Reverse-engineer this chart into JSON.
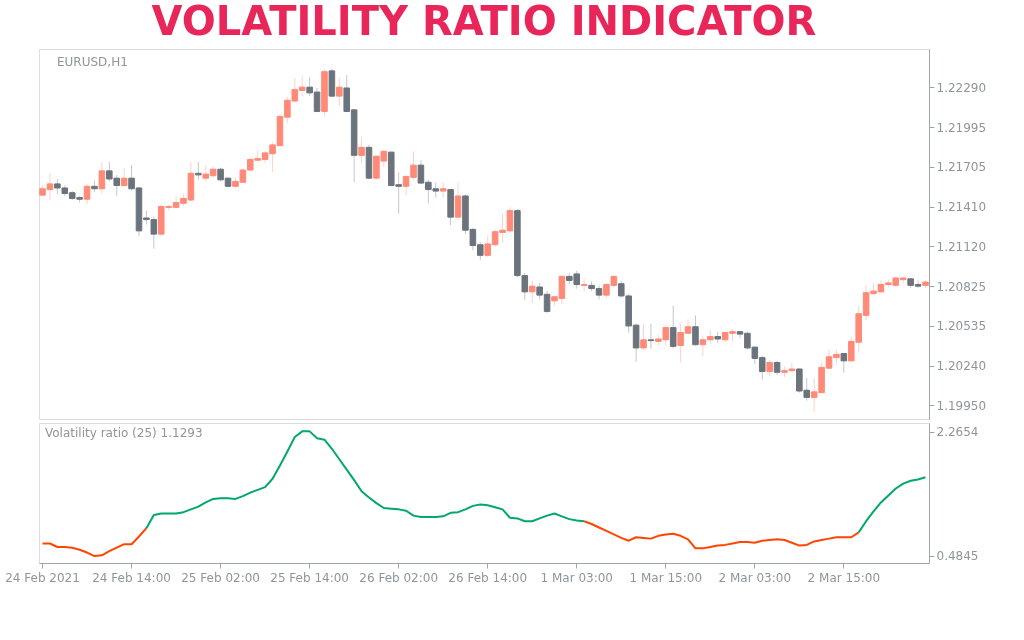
{
  "chart_data": [
    {
      "type": "candlestick",
      "title": "VOLATILITY RATIO INDICATOR",
      "annotations": [
        "EURUSD,H1"
      ],
      "categories": [
        null,
        null,
        null,
        null,
        null,
        null,
        null,
        null,
        null,
        null,
        null,
        null,
        null,
        null,
        null,
        null,
        null,
        null,
        null,
        null,
        null,
        null,
        null,
        null,
        null,
        null,
        null,
        null,
        null,
        null,
        null,
        null,
        null,
        null,
        null,
        null,
        null,
        null,
        null,
        null,
        null,
        null,
        null,
        null,
        null,
        null,
        null,
        null,
        null,
        null,
        null,
        null,
        null,
        null,
        null,
        null,
        null,
        null,
        null,
        null,
        null,
        null,
        null,
        null,
        null,
        null,
        null,
        null,
        null,
        null,
        null,
        null,
        null,
        null,
        null,
        null,
        null,
        null,
        null,
        null,
        null,
        null,
        null,
        null,
        null,
        null,
        null,
        null,
        null,
        null,
        null,
        null,
        null,
        null,
        null,
        null,
        null,
        null,
        null,
        null,
        null,
        null,
        null,
        null,
        null,
        null,
        null,
        null,
        null,
        null,
        null,
        null,
        null,
        null,
        null,
        null,
        null,
        null,
        null,
        null
      ],
      "ohlc": [
        [
          1.21495,
          1.21566,
          1.21489,
          1.21542
        ],
        [
          1.21536,
          1.21656,
          1.21459,
          1.21578
        ],
        [
          1.21578,
          1.21614,
          1.21501,
          1.21548
        ],
        [
          1.21548,
          1.21566,
          1.21489,
          1.21507
        ],
        [
          1.21513,
          1.21525,
          1.21459,
          1.21471
        ],
        [
          1.21477,
          1.21489,
          1.21441,
          1.21465
        ],
        [
          1.21465,
          1.21578,
          1.21429,
          1.2156
        ],
        [
          1.2156,
          1.21602,
          1.21519,
          1.21542
        ],
        [
          1.21542,
          1.2174,
          1.21507,
          1.21674
        ],
        [
          1.21674,
          1.2174,
          1.21596,
          1.21614
        ],
        [
          1.2162,
          1.21644,
          1.21489,
          1.21566
        ],
        [
          1.21566,
          1.21692,
          1.21554,
          1.2162
        ],
        [
          1.2162,
          1.21716,
          1.21531,
          1.21542
        ],
        [
          1.21548,
          1.21554,
          1.21196,
          1.21232
        ],
        [
          1.21327,
          1.21381,
          1.21279,
          1.21315
        ],
        [
          1.21315,
          1.21339,
          1.211,
          1.21208
        ],
        [
          1.21208,
          1.21429,
          1.21196,
          1.21411
        ],
        [
          1.21405,
          1.21423,
          1.21387,
          1.21411
        ],
        [
          1.21405,
          1.21489,
          1.21399,
          1.21441
        ],
        [
          1.21435,
          1.21501,
          1.21417,
          1.21471
        ],
        [
          1.21459,
          1.2174,
          1.21447,
          1.21656
        ],
        [
          1.21656,
          1.2174,
          1.21608,
          1.21644
        ],
        [
          1.2162,
          1.21716,
          1.21596,
          1.2165
        ],
        [
          1.21638,
          1.21704,
          1.21626,
          1.21686
        ],
        [
          1.21686,
          1.21698,
          1.21596,
          1.21608
        ],
        [
          1.2162,
          1.21626,
          1.21554,
          1.2156
        ],
        [
          1.2156,
          1.21626,
          1.21554,
          1.21596
        ],
        [
          1.2159,
          1.21692,
          1.21584,
          1.2168
        ],
        [
          1.2168,
          1.2177,
          1.21668,
          1.21758
        ],
        [
          1.21752,
          1.21824,
          1.21752,
          1.21764
        ],
        [
          1.21758,
          1.21818,
          1.21728,
          1.21806
        ],
        [
          1.218,
          1.21883,
          1.21668,
          1.21865
        ],
        [
          1.21859,
          1.22087,
          1.21859,
          1.22075
        ],
        [
          1.22069,
          1.22218,
          1.22027,
          1.22194
        ],
        [
          1.22188,
          1.22356,
          1.22176,
          1.22272
        ],
        [
          1.22266,
          1.22374,
          1.22224,
          1.2229
        ],
        [
          1.2229,
          1.22362,
          1.22224,
          1.22248
        ],
        [
          1.22254,
          1.22284,
          1.22105,
          1.22111
        ],
        [
          1.22111,
          1.22422,
          1.22075,
          1.22404
        ],
        [
          1.2241,
          1.22428,
          1.22218,
          1.22224
        ],
        [
          1.22224,
          1.22356,
          1.22152,
          1.2229
        ],
        [
          1.22284,
          1.2238,
          1.22105,
          1.22111
        ],
        [
          1.22123,
          1.22129,
          1.2159,
          1.21788
        ],
        [
          1.21788,
          1.21925,
          1.21734,
          1.21847
        ],
        [
          1.21847,
          1.21865,
          1.21614,
          1.2162
        ],
        [
          1.2162,
          1.21782,
          1.21614,
          1.21782
        ],
        [
          1.21746,
          1.21824,
          1.21704,
          1.21818
        ],
        [
          1.21812,
          1.21812,
          1.2156,
          1.21566
        ],
        [
          1.21572,
          1.21662,
          1.21357,
          1.2156
        ],
        [
          1.2156,
          1.21644,
          1.21495,
          1.21632
        ],
        [
          1.21626,
          1.21818,
          1.21608,
          1.21716
        ],
        [
          1.21716,
          1.21752,
          1.21578,
          1.21584
        ],
        [
          1.2159,
          1.21608,
          1.21435,
          1.21536
        ],
        [
          1.21542,
          1.2159,
          1.21477,
          1.21525
        ],
        [
          1.21525,
          1.2159,
          1.21477,
          1.21542
        ],
        [
          1.21536,
          1.21542,
          1.21273,
          1.21333
        ],
        [
          1.21333,
          1.2159,
          1.21315,
          1.21489
        ],
        [
          1.21489,
          1.21501,
          1.21208,
          1.21237
        ],
        [
          1.21243,
          1.21255,
          1.21088,
          1.21124
        ],
        [
          1.2113,
          1.21148,
          1.21016,
          1.21052
        ],
        [
          1.21052,
          1.21196,
          1.2104,
          1.21136
        ],
        [
          1.2113,
          1.21243,
          1.21118,
          1.21226
        ],
        [
          1.2122,
          1.21357,
          1.21148,
          1.21237
        ],
        [
          1.21232,
          1.21405,
          1.2122,
          1.21381
        ],
        [
          1.21381,
          1.21393,
          1.20891,
          1.20903
        ],
        [
          1.20903,
          1.20921,
          1.20723,
          1.20783
        ],
        [
          1.20783,
          1.20867,
          1.20699,
          1.20825
        ],
        [
          1.20819,
          1.20849,
          1.20729,
          1.20759
        ],
        [
          1.20765,
          1.20789,
          1.20628,
          1.20639
        ],
        [
          1.20717,
          1.20759,
          1.20681,
          1.20747
        ],
        [
          1.20735,
          1.20903,
          1.20693,
          1.20897
        ],
        [
          1.20897,
          1.20921,
          1.20837,
          1.20867
        ],
        [
          1.20915,
          1.20938,
          1.20807,
          1.20837
        ],
        [
          1.20831,
          1.20879,
          1.20789,
          1.20837
        ],
        [
          1.20831,
          1.20861,
          1.20789,
          1.20807
        ],
        [
          1.20807,
          1.20831,
          1.20729,
          1.20759
        ],
        [
          1.20759,
          1.20849,
          1.20741,
          1.20837
        ],
        [
          1.20831,
          1.20909,
          1.20813,
          1.20897
        ],
        [
          1.20843,
          1.20861,
          1.20741,
          1.20753
        ],
        [
          1.20753,
          1.20771,
          1.20484,
          1.20532
        ],
        [
          1.20538,
          1.2055,
          1.20269,
          1.2037
        ],
        [
          1.2037,
          1.20544,
          1.20358,
          1.2043
        ],
        [
          1.2043,
          1.2055,
          1.20364,
          1.20424
        ],
        [
          1.20418,
          1.20466,
          1.20388,
          1.20436
        ],
        [
          1.2043,
          1.20532,
          1.20388,
          1.2052
        ],
        [
          1.2052,
          1.20681,
          1.2037,
          1.20382
        ],
        [
          1.20388,
          1.2055,
          1.20263,
          1.20484
        ],
        [
          1.20478,
          1.2058,
          1.20478,
          1.20526
        ],
        [
          1.20526,
          1.2061,
          1.20388,
          1.20394
        ],
        [
          1.20394,
          1.2046,
          1.20311,
          1.2043
        ],
        [
          1.2043,
          1.20502,
          1.204,
          1.20454
        ],
        [
          1.20454,
          1.2049,
          1.20406,
          1.20436
        ],
        [
          1.2043,
          1.2049,
          1.20412,
          1.20484
        ],
        [
          1.20478,
          1.20508,
          1.20418,
          1.2049
        ],
        [
          1.2049,
          1.20496,
          1.20442,
          1.20472
        ],
        [
          1.20478,
          1.2049,
          1.20358,
          1.2037
        ],
        [
          1.20376,
          1.20382,
          1.20251,
          1.20293
        ],
        [
          1.20299,
          1.20311,
          1.20137,
          1.20197
        ],
        [
          1.20197,
          1.20281,
          1.20161,
          1.20263
        ],
        [
          1.20263,
          1.20275,
          1.20173,
          1.20191
        ],
        [
          1.20191,
          1.20233,
          1.20155,
          1.20203
        ],
        [
          1.20203,
          1.20263,
          1.20191,
          1.20215
        ],
        [
          1.20215,
          1.20221,
          1.20041,
          1.20053
        ],
        [
          1.20059,
          1.20149,
          1.19982,
          1.20006
        ],
        [
          1.20006,
          1.20149,
          1.19898,
          1.20047
        ],
        [
          1.20041,
          1.20263,
          1.20036,
          1.20227
        ],
        [
          1.20221,
          1.20358,
          1.20215,
          1.20305
        ],
        [
          1.20299,
          1.20358,
          1.20257,
          1.20323
        ],
        [
          1.20329,
          1.20329,
          1.20185,
          1.20275
        ],
        [
          1.20275,
          1.20454,
          1.20269,
          1.20418
        ],
        [
          1.20412,
          1.20681,
          1.20335,
          1.20622
        ],
        [
          1.2061,
          1.20831,
          1.20574,
          1.20777
        ],
        [
          1.20771,
          1.20849,
          1.20759,
          1.20789
        ],
        [
          1.20783,
          1.20867,
          1.20777,
          1.20837
        ],
        [
          1.20837,
          1.20873,
          1.20819,
          1.20849
        ],
        [
          1.20831,
          1.20897,
          1.20819,
          1.20885
        ],
        [
          1.20873,
          1.20891,
          1.20843,
          1.20885
        ],
        [
          1.20879,
          1.20885,
          1.20813,
          1.20831
        ],
        [
          1.20837,
          1.20867,
          1.20813,
          1.20825
        ],
        [
          1.20831,
          1.20867,
          1.20813,
          1.20855
        ]
      ],
      "colors": [
        "#ff8a78",
        "#ff8a78",
        "#6b737c",
        "#6b737c",
        "#6b737c",
        "#6b737c",
        "#ff8a78",
        "#6b737c",
        "#ff8a78",
        "#6b737c",
        "#6b737c",
        "#ff8a78",
        "#6b737c",
        "#6b737c",
        "#6b737c",
        "#6b737c",
        "#ff8a78",
        "#ff8a78",
        "#ff8a78",
        "#ff8a78",
        "#ff8a78",
        "#6b737c",
        "#ff8a78",
        "#ff8a78",
        "#6b737c",
        "#6b737c",
        "#ff8a78",
        "#ff8a78",
        "#ff8a78",
        "#ff8a78",
        "#ff8a78",
        "#ff8a78",
        "#ff8a78",
        "#ff8a78",
        "#ff8a78",
        "#ff8a78",
        "#6b737c",
        "#6b737c",
        "#ff8a78",
        "#6b737c",
        "#ff8a78",
        "#6b737c",
        "#6b737c",
        "#ff8a78",
        "#6b737c",
        "#ff8a78",
        "#ff8a78",
        "#6b737c",
        "#6b737c",
        "#ff8a78",
        "#ff8a78",
        "#6b737c",
        "#6b737c",
        "#6b737c",
        "#ff8a78",
        "#6b737c",
        "#ff8a78",
        "#6b737c",
        "#6b737c",
        "#6b737c",
        "#ff8a78",
        "#ff8a78",
        "#ff8a78",
        "#ff8a78",
        "#6b737c",
        "#6b737c",
        "#ff8a78",
        "#6b737c",
        "#6b737c",
        "#ff8a78",
        "#ff8a78",
        "#6b737c",
        "#6b737c",
        "#ff8a78",
        "#6b737c",
        "#6b737c",
        "#ff8a78",
        "#ff8a78",
        "#6b737c",
        "#6b737c",
        "#6b737c",
        "#ff8a78",
        "#6b737c",
        "#ff8a78",
        "#ff8a78",
        "#6b737c",
        "#ff8a78",
        "#ff8a78",
        "#6b737c",
        "#ff8a78",
        "#ff8a78",
        "#6b737c",
        "#ff8a78",
        "#ff8a78",
        "#6b737c",
        "#6b737c",
        "#6b737c",
        "#6b737c",
        "#ff8a78",
        "#6b737c",
        "#ff8a78",
        "#ff8a78",
        "#6b737c",
        "#6b737c",
        "#ff8a78",
        "#ff8a78",
        "#ff8a78",
        "#ff8a78",
        "#6b737c",
        "#ff8a78",
        "#ff8a78",
        "#ff8a78",
        "#ff8a78",
        "#ff8a78",
        "#ff8a78",
        "#ff8a78",
        "#ff8a78",
        "#6b737c",
        "#6b737c",
        "#ff8a78"
      ],
      "ylim": [
        1.19847,
        1.22571
      ],
      "yticks": [
        {
          "value": 1.2229,
          "label": "1.22290"
        },
        {
          "value": 1.21995,
          "label": "1.21995"
        },
        {
          "value": 1.21705,
          "label": "1.21705"
        },
        {
          "value": 1.2141,
          "label": "1.21410"
        },
        {
          "value": 1.2112,
          "label": "1.21120"
        },
        {
          "value": 1.20825,
          "label": "1.20825"
        },
        {
          "value": 1.20535,
          "label": "1.20535"
        },
        {
          "value": 1.2024,
          "label": "1.20240"
        },
        {
          "value": 1.1995,
          "label": "1.19950"
        }
      ],
      "tick_labels": "y",
      "grid": false
    },
    {
      "type": "line",
      "title": "Volatility ratio (25) 1.1293",
      "marker": "none",
      "line_style": "solid",
      "grid": false,
      "categories": [
        "24 Feb 2021",
        null,
        null,
        null,
        null,
        null,
        null,
        null,
        null,
        null,
        null,
        null,
        "24 Feb 14:00",
        null,
        null,
        null,
        null,
        null,
        null,
        null,
        null,
        null,
        null,
        null,
        "25 Feb 02:00",
        null,
        null,
        null,
        null,
        null,
        null,
        null,
        null,
        null,
        null,
        null,
        "25 Feb 14:00",
        null,
        null,
        null,
        null,
        null,
        null,
        null,
        null,
        null,
        null,
        null,
        "26 Feb 02:00",
        null,
        null,
        null,
        null,
        null,
        null,
        null,
        null,
        null,
        null,
        null,
        "26 Feb 14:00",
        null,
        null,
        null,
        null,
        null,
        null,
        null,
        null,
        null,
        null,
        null,
        "1 Mar 03:00",
        null,
        null,
        null,
        null,
        null,
        null,
        null,
        null,
        null,
        null,
        null,
        "1 Mar 15:00",
        null,
        null,
        null,
        null,
        null,
        null,
        null,
        null,
        null,
        null,
        null,
        "2 Mar 03:00",
        null,
        null,
        null,
        null,
        null,
        null,
        null,
        null,
        null,
        null,
        null,
        "2 Mar 15:00",
        null,
        null,
        null,
        null,
        null,
        null,
        null,
        null,
        null,
        null,
        null
      ],
      "series": [
        {
          "color": "#ff4500",
          "values": [
            0.66,
            0.66,
            0.61,
            0.61,
            0.6,
            0.57,
            0.53,
            0.48,
            0.49,
            0.55,
            0.6,
            0.65,
            0.65,
            0.76,
            0.88,
            null,
            null,
            null,
            null,
            null,
            null,
            null,
            null,
            null,
            null,
            null,
            null,
            null,
            null,
            null,
            null,
            null,
            null,
            null,
            null,
            null,
            null,
            null,
            null,
            null,
            null,
            null,
            null,
            null,
            null,
            null,
            null,
            null,
            null,
            null,
            null,
            null,
            null,
            null,
            null,
            null,
            null,
            null,
            null,
            null,
            null,
            null,
            null,
            null,
            null,
            null,
            null,
            null,
            null,
            null,
            null,
            null,
            null,
            null,
            null,
            null,
            null,
            null,
            null,
            null,
            null,
            null,
            null,
            null,
            null,
            null,
            null,
            null,
            null,
            null,
            null,
            null,
            null,
            null,
            null,
            null,
            null,
            null,
            null,
            null,
            null,
            null,
            null,
            null,
            null,
            null,
            null,
            null,
            null,
            null,
            null,
            null,
            null,
            null,
            null,
            null,
            null,
            null,
            null,
            null
          ]
        },
        {
          "color": "#00a86b",
          "values": [
            null,
            null,
            null,
            null,
            null,
            null,
            null,
            null,
            null,
            null,
            null,
            null,
            null,
            null,
            0.88,
            1.07,
            1.09,
            1.09,
            1.09,
            1.11,
            1.15,
            1.19,
            1.25,
            1.3,
            1.31,
            1.31,
            1.3,
            1.34,
            1.39,
            1.43,
            1.47,
            1.59,
            1.78,
            1.98,
            2.19,
            2.27,
            2.27,
            2.17,
            2.15,
            2.02,
            1.87,
            1.72,
            1.57,
            1.41,
            1.32,
            1.24,
            1.17,
            1.16,
            1.15,
            1.13,
            1.06,
            1.04,
            1.04,
            1.04,
            1.05,
            1.1,
            1.11,
            1.15,
            1.2,
            1.22,
            1.21,
            1.18,
            1.15,
            1.03,
            1.02,
            0.98,
            0.98,
            1.02,
            1.06,
            1.09,
            1.05,
            1.01,
            0.99,
            0.98,
            null,
            null,
            null,
            null,
            null,
            null,
            null,
            null,
            null,
            null,
            null,
            null,
            null,
            null,
            null,
            null,
            null,
            null,
            null,
            null,
            null,
            null,
            null,
            null,
            null,
            null,
            null,
            null,
            null,
            null,
            null,
            null,
            null,
            null,
            null,
            null,
            null,
            null,
            null,
            null,
            null,
            null,
            null,
            null,
            null,
            null
          ]
        },
        {
          "color": "#ff4500",
          "values": [
            null,
            null,
            null,
            null,
            null,
            null,
            null,
            null,
            null,
            null,
            null,
            null,
            null,
            null,
            null,
            null,
            null,
            null,
            null,
            null,
            null,
            null,
            null,
            null,
            null,
            null,
            null,
            null,
            null,
            null,
            null,
            null,
            null,
            null,
            null,
            null,
            null,
            null,
            null,
            null,
            null,
            null,
            null,
            null,
            null,
            null,
            null,
            null,
            null,
            null,
            null,
            null,
            null,
            null,
            null,
            null,
            null,
            null,
            null,
            null,
            null,
            null,
            null,
            null,
            null,
            null,
            null,
            null,
            null,
            null,
            null,
            null,
            null,
            0.98,
            0.94,
            0.89,
            0.84,
            0.79,
            0.74,
            0.7,
            0.75,
            0.74,
            0.73,
            0.77,
            0.79,
            0.8,
            0.77,
            0.72,
            0.59,
            0.59,
            0.61,
            0.63,
            0.64,
            0.66,
            0.68,
            0.68,
            0.67,
            0.7,
            0.71,
            0.72,
            0.71,
            0.67,
            0.63,
            0.64,
            0.69,
            0.71,
            0.73,
            0.75,
            0.75,
            0.75,
            0.82,
            null,
            null,
            null,
            null,
            null,
            null,
            null,
            null,
            null
          ]
        },
        {
          "color": "#00a86b",
          "values": [
            null,
            null,
            null,
            null,
            null,
            null,
            null,
            null,
            null,
            null,
            null,
            null,
            null,
            null,
            null,
            null,
            null,
            null,
            null,
            null,
            null,
            null,
            null,
            null,
            null,
            null,
            null,
            null,
            null,
            null,
            null,
            null,
            null,
            null,
            null,
            null,
            null,
            null,
            null,
            null,
            null,
            null,
            null,
            null,
            null,
            null,
            null,
            null,
            null,
            null,
            null,
            null,
            null,
            null,
            null,
            null,
            null,
            null,
            null,
            null,
            null,
            null,
            null,
            null,
            null,
            null,
            null,
            null,
            null,
            null,
            null,
            null,
            null,
            null,
            null,
            null,
            null,
            null,
            null,
            null,
            null,
            null,
            null,
            null,
            null,
            null,
            null,
            null,
            null,
            null,
            null,
            null,
            null,
            null,
            null,
            null,
            null,
            null,
            null,
            null,
            null,
            null,
            null,
            null,
            null,
            null,
            null,
            null,
            null,
            null,
            0.82,
            0.98,
            1.12,
            1.25,
            1.35,
            1.45,
            1.52,
            1.56,
            1.58,
            1.61
          ]
        }
      ],
      "ylim": [
        0.38,
        2.39
      ],
      "yticks": [
        {
          "value": 2.2654,
          "label": "2.2654"
        },
        {
          "value": 0.4845,
          "label": "0.4845"
        }
      ],
      "tick_labels": "xy"
    }
  ]
}
